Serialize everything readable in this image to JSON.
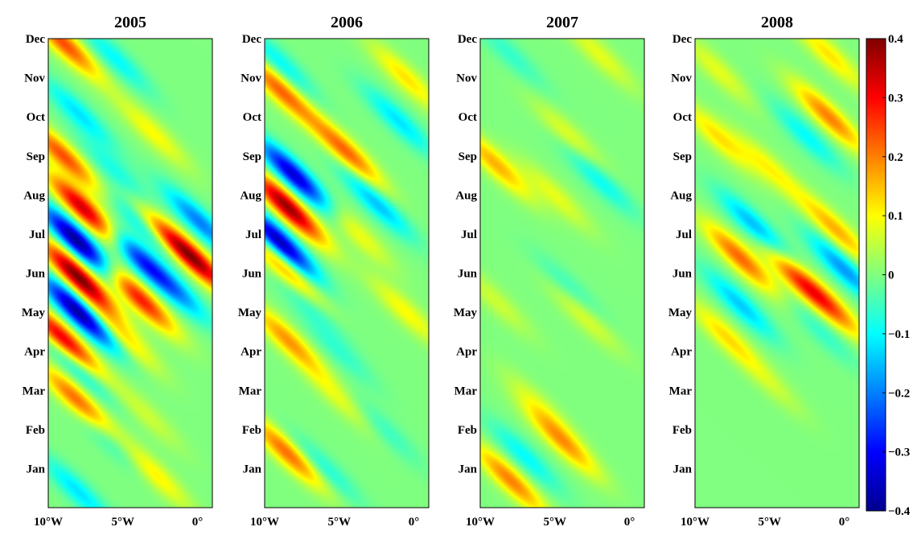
{
  "chart_data": {
    "type": "heatmap",
    "colormap": "jet",
    "colorbar": {
      "range": [
        -0.4,
        0.4
      ],
      "tick_values": [
        0.4,
        0.3,
        0.2,
        0.1,
        0,
        -0.1,
        -0.2,
        -0.3,
        -0.4
      ],
      "tick_labels": [
        "0.4",
        "0.3",
        "0.2",
        "0.1",
        "0",
        "−0.1",
        "−0.2",
        "−0.3",
        "−0.4"
      ],
      "placement": "right"
    },
    "x_axis": {
      "range": [
        -10,
        1
      ],
      "tick_values": [
        -10,
        -5,
        0
      ],
      "tick_labels": [
        "10°W",
        "5°W",
        "0°"
      ]
    },
    "y_axis": {
      "range": [
        0,
        12
      ],
      "tick_values": [
        1,
        2,
        3,
        4,
        5,
        6,
        7,
        8,
        9,
        10,
        11,
        12
      ],
      "tick_labels": [
        "Jan",
        "Feb",
        "Mar",
        "Apr",
        "May",
        "Jun",
        "Jul",
        "Aug",
        "Sep",
        "Oct",
        "Nov",
        "Dec"
      ]
    },
    "panels": [
      {
        "title": "2005",
        "features": [
          {
            "lon": -9.0,
            "month": 11.9,
            "amp": 0.24
          },
          {
            "lon": -5.5,
            "month": 11.5,
            "amp": -0.1
          },
          {
            "lon": -8.0,
            "month": 10.1,
            "amp": -0.12
          },
          {
            "lon": -3.0,
            "month": 9.6,
            "amp": 0.1
          },
          {
            "lon": -9.0,
            "month": 9.0,
            "amp": 0.24
          },
          {
            "lon": -5.5,
            "month": 8.6,
            "amp": -0.08
          },
          {
            "lon": -7.5,
            "month": 7.6,
            "amp": 0.36
          },
          {
            "lon": -3.5,
            "month": 7.2,
            "amp": -0.15
          },
          {
            "lon": -8.0,
            "month": 6.8,
            "amp": -0.4
          },
          {
            "lon": -4.0,
            "month": 6.4,
            "amp": -0.25
          },
          {
            "lon": -8.0,
            "month": 5.9,
            "amp": 0.4
          },
          {
            "lon": -4.0,
            "month": 5.4,
            "amp": 0.3
          },
          {
            "lon": 0.0,
            "month": 6.3,
            "amp": 0.3
          },
          {
            "lon": 0.2,
            "month": 7.3,
            "amp": -0.2
          },
          {
            "lon": -2.0,
            "month": 6.9,
            "amp": 0.2
          },
          {
            "lon": -8.0,
            "month": 5.0,
            "amp": -0.38
          },
          {
            "lon": -1.5,
            "month": 5.6,
            "amp": -0.15
          },
          {
            "lon": -9.0,
            "month": 4.3,
            "amp": 0.34
          },
          {
            "lon": -5.0,
            "month": 4.4,
            "amp": 0.12
          },
          {
            "lon": -8.0,
            "month": 3.6,
            "amp": -0.12
          },
          {
            "lon": -8.0,
            "month": 2.7,
            "amp": 0.24
          },
          {
            "lon": -3.5,
            "month": 2.4,
            "amp": 0.06
          },
          {
            "lon": -6.0,
            "month": 1.8,
            "amp": -0.1
          },
          {
            "lon": -3.0,
            "month": 0.9,
            "amp": 0.12
          },
          {
            "lon": -8.0,
            "month": 0.4,
            "amp": -0.12
          }
        ]
      },
      {
        "title": "2006",
        "features": [
          {
            "lon": -9.0,
            "month": 11.4,
            "amp": -0.1
          },
          {
            "lon": -9.0,
            "month": 10.7,
            "amp": 0.22
          },
          {
            "lon": -0.5,
            "month": 11.0,
            "amp": 0.12
          },
          {
            "lon": -1.0,
            "month": 9.9,
            "amp": -0.12
          },
          {
            "lon": -4.5,
            "month": 9.1,
            "amp": 0.22
          },
          {
            "lon": -8.0,
            "month": 8.5,
            "amp": -0.34
          },
          {
            "lon": -2.5,
            "month": 7.8,
            "amp": -0.15
          },
          {
            "lon": -8.5,
            "month": 7.7,
            "amp": 0.38
          },
          {
            "lon": -4.0,
            "month": 7.1,
            "amp": 0.1
          },
          {
            "lon": -9.0,
            "month": 6.8,
            "amp": -0.36
          },
          {
            "lon": -8.5,
            "month": 6.0,
            "amp": 0.2
          },
          {
            "lon": -7.5,
            "month": 5.4,
            "amp": -0.1
          },
          {
            "lon": -0.5,
            "month": 5.0,
            "amp": 0.1
          },
          {
            "lon": -8.5,
            "month": 4.3,
            "amp": 0.18
          },
          {
            "lon": -5.0,
            "month": 4.0,
            "amp": -0.06
          },
          {
            "lon": -5.0,
            "month": 2.8,
            "amp": 0.08
          },
          {
            "lon": -8.5,
            "month": 1.4,
            "amp": 0.22
          },
          {
            "lon": -6.0,
            "month": 1.0,
            "amp": -0.08
          },
          {
            "lon": -2.0,
            "month": 2.0,
            "amp": -0.06
          }
        ]
      },
      {
        "title": "2007",
        "features": [
          {
            "lon": -8.0,
            "month": 11.6,
            "amp": -0.06
          },
          {
            "lon": -2.0,
            "month": 11.6,
            "amp": 0.08
          },
          {
            "lon": -4.0,
            "month": 9.5,
            "amp": 0.08
          },
          {
            "lon": -9.0,
            "month": 8.8,
            "amp": 0.16
          },
          {
            "lon": -2.0,
            "month": 8.4,
            "amp": -0.1
          },
          {
            "lon": -5.0,
            "month": 8.0,
            "amp": 0.08
          },
          {
            "lon": -4.0,
            "month": 5.6,
            "amp": -0.06
          },
          {
            "lon": -3.0,
            "month": 4.9,
            "amp": 0.08
          },
          {
            "lon": -9.0,
            "month": 5.3,
            "amp": 0.06
          },
          {
            "lon": -4.5,
            "month": 1.7,
            "amp": 0.18
          },
          {
            "lon": -7.0,
            "month": 1.3,
            "amp": -0.1
          },
          {
            "lon": -8.0,
            "month": 0.7,
            "amp": 0.2
          },
          {
            "lon": -6.0,
            "month": 2.6,
            "amp": 0.06
          }
        ]
      },
      {
        "title": "2008",
        "features": [
          {
            "lon": -1.0,
            "month": 11.6,
            "amp": 0.12
          },
          {
            "lon": -8.5,
            "month": 11.2,
            "amp": 0.08
          },
          {
            "lon": -1.0,
            "month": 10.0,
            "amp": 0.2
          },
          {
            "lon": -2.5,
            "month": 9.5,
            "amp": -0.1
          },
          {
            "lon": -8.5,
            "month": 9.5,
            "amp": 0.12
          },
          {
            "lon": -5.0,
            "month": 8.7,
            "amp": 0.1
          },
          {
            "lon": -6.0,
            "month": 7.2,
            "amp": -0.16
          },
          {
            "lon": -0.5,
            "month": 7.1,
            "amp": 0.16
          },
          {
            "lon": -7.0,
            "month": 6.4,
            "amp": 0.22
          },
          {
            "lon": -3.0,
            "month": 5.8,
            "amp": 0.2
          },
          {
            "lon": -1.0,
            "month": 5.2,
            "amp": 0.18
          },
          {
            "lon": 0.0,
            "month": 6.1,
            "amp": -0.18
          },
          {
            "lon": -7.0,
            "month": 5.2,
            "amp": -0.14
          },
          {
            "lon": -8.0,
            "month": 4.4,
            "amp": 0.12
          },
          {
            "lon": -1.5,
            "month": 4.5,
            "amp": -0.06
          },
          {
            "lon": -5.0,
            "month": 3.2,
            "amp": 0.05
          }
        ]
      }
    ]
  }
}
